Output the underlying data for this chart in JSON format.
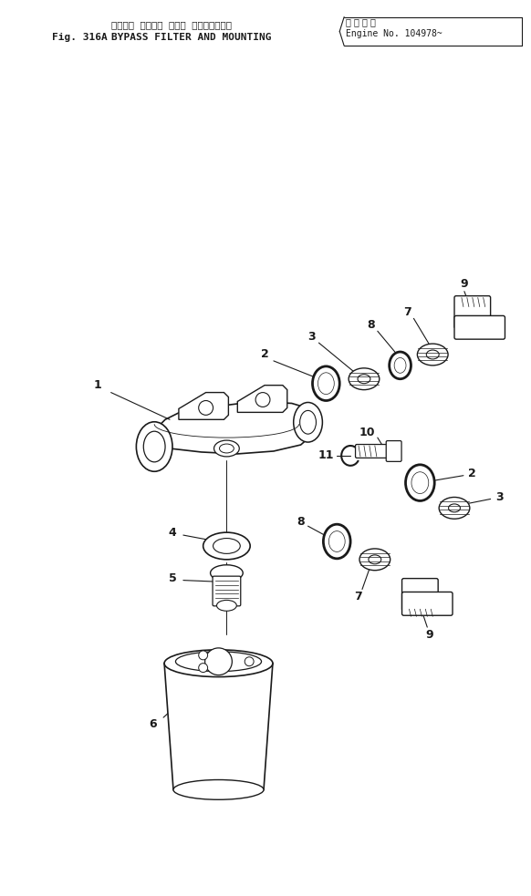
{
  "title_jp": "バイパス  フィルタ  および  マウンティング",
  "title_en": "BYPASS FILTER AND MOUNTING",
  "fig_label": "Fig. 316A",
  "engine_note_jp": "適 用 号 機",
  "engine_note_en": "Engine No. 104978~",
  "bg_color": "#ffffff",
  "fig_w": 5.82,
  "fig_h": 9.83,
  "dpi": 100
}
